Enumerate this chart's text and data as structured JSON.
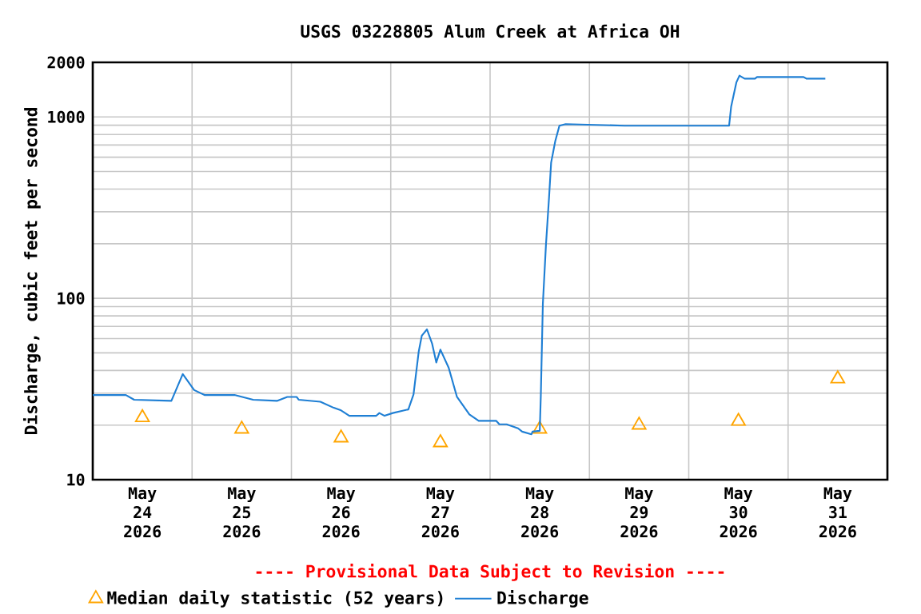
{
  "chart_data": {
    "type": "line",
    "title": "USGS 03228805 Alum Creek at Africa OH",
    "ylabel": "Discharge, cubic feet per second",
    "annotations": [
      "---- Provisional Data Subject to Revision ----"
    ],
    "log": "y",
    "grid": true,
    "legend": "bottom",
    "xlim": [
      "2026-05-24T00:00",
      "2026-06-01T00:00"
    ],
    "xticks": [
      {
        "value": "2026-05-24T12:00",
        "label": "May 24 2026"
      },
      {
        "value": "2026-05-25T00:00",
        "label": null
      },
      {
        "value": "2026-05-25T12:00",
        "label": "May 25 2026"
      },
      {
        "value": "2026-05-26T00:00",
        "label": null
      },
      {
        "value": "2026-05-26T12:00",
        "label": "May 26 2026"
      },
      {
        "value": "2026-05-27T00:00",
        "label": null
      },
      {
        "value": "2026-05-27T12:00",
        "label": "May 27 2026"
      },
      {
        "value": "2026-05-28T00:00",
        "label": null
      },
      {
        "value": "2026-05-28T12:00",
        "label": "May 28 2026"
      },
      {
        "value": "2026-05-29T00:00",
        "label": null
      },
      {
        "value": "2026-05-29T12:00",
        "label": "May 29 2026"
      },
      {
        "value": "2026-05-30T00:00",
        "label": null
      },
      {
        "value": "2026-05-30T12:00",
        "label": "May 30 2026"
      },
      {
        "value": "2026-05-31T00:00",
        "label": null
      },
      {
        "value": "2026-05-31T12:00",
        "label": "May 31 2026"
      }
    ],
    "ylim": [
      10,
      2000
    ],
    "yticks": [
      10,
      100,
      1000,
      2000
    ],
    "series": [
      {
        "name": "Median daily statistic (52 years)",
        "type": "scatter",
        "marker": "triangle",
        "color": "#ffa500",
        "x": [
          "2026-05-24T12:00",
          "2026-05-25T12:00",
          "2026-05-26T12:00",
          "2026-05-27T12:00",
          "2026-05-28T12:00",
          "2026-05-29T12:00",
          "2026-05-30T12:00",
          "2026-05-31T12:00"
        ],
        "values": [
          22,
          19,
          17,
          16,
          19,
          20,
          21,
          36
        ]
      },
      {
        "name": "Discharge",
        "type": "line",
        "marker": "none",
        "color": "#1f7fd4",
        "x": [
          "2026-05-24T00:00",
          "2026-05-24T08:00",
          "2026-05-24T10:00",
          "2026-05-24T19:00",
          "2026-05-24T21:45",
          "2026-05-25T00:30",
          "2026-05-25T03:00",
          "2026-05-25T10:15",
          "2026-05-25T14:45",
          "2026-05-25T20:30",
          "2026-05-25T23:00",
          "2026-05-26T01:15",
          "2026-05-26T01:45",
          "2026-05-26T07:00",
          "2026-05-26T10:15",
          "2026-05-26T12:00",
          "2026-05-26T14:00",
          "2026-05-26T20:30",
          "2026-05-26T21:15",
          "2026-05-26T22:30",
          "2026-05-27T00:30",
          "2026-05-27T04:15",
          "2026-05-27T05:30",
          "2026-05-27T06:45",
          "2026-05-27T07:30",
          "2026-05-27T08:45",
          "2026-05-27T10:00",
          "2026-05-27T11:00",
          "2026-05-27T12:00",
          "2026-05-27T14:00",
          "2026-05-27T16:00",
          "2026-05-27T19:00",
          "2026-05-27T21:15",
          "2026-05-28T01:30",
          "2026-05-28T02:15",
          "2026-05-28T04:00",
          "2026-05-28T06:45",
          "2026-05-28T07:45",
          "2026-05-28T10:00",
          "2026-05-28T10:15",
          "2026-05-28T12:00",
          "2026-05-28T12:15",
          "2026-05-28T12:45",
          "2026-05-28T13:30",
          "2026-05-28T14:15",
          "2026-05-28T14:45",
          "2026-05-28T15:45",
          "2026-05-28T16:45",
          "2026-05-28T18:15",
          "2026-05-29T08:30",
          "2026-05-30T09:45",
          "2026-05-30T10:15",
          "2026-05-30T11:30",
          "2026-05-30T12:15",
          "2026-05-30T13:30",
          "2026-05-30T16:00",
          "2026-05-30T16:30",
          "2026-05-31T03:45",
          "2026-05-31T04:30",
          "2026-05-31T09:00"
        ],
        "values": [
          29.3,
          29.3,
          27.6,
          27.2,
          38.2,
          31.2,
          29.3,
          29.3,
          27.6,
          27.2,
          28.6,
          28.6,
          27.6,
          26.9,
          24.9,
          24.1,
          22.5,
          22.5,
          23.3,
          22.5,
          23.3,
          24.4,
          29.5,
          50.7,
          62.2,
          67.4,
          56.2,
          44.3,
          52.1,
          41.4,
          28.6,
          22.9,
          21.1,
          21.1,
          20.2,
          20.2,
          19.2,
          18.4,
          17.8,
          18.4,
          18.6,
          28.6,
          93,
          197,
          361,
          560,
          736,
          895,
          913,
          895,
          895,
          1142,
          1549,
          1690,
          1625,
          1625,
          1660,
          1660,
          1625,
          1625
        ]
      }
    ]
  }
}
